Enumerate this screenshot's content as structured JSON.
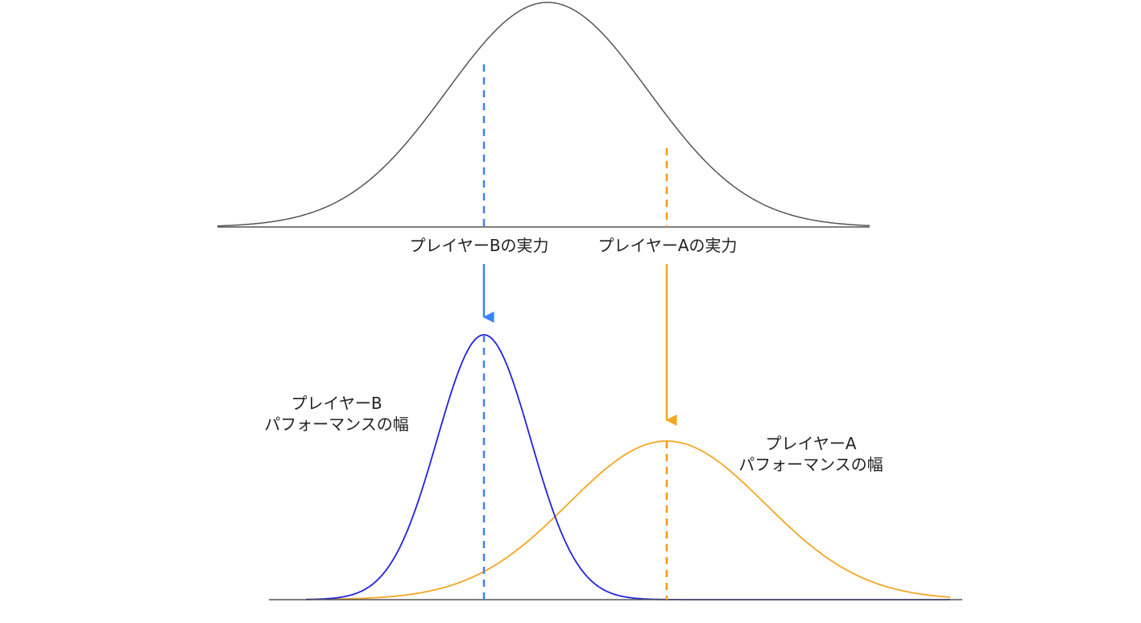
{
  "labels": {
    "b_skill": "プレイヤーBの実力",
    "a_skill": "プレイヤーAの実力",
    "b_perf_line1": "プレイヤーB",
    "b_perf_line2": "パフォーマンスの幅",
    "a_perf_line1": "プレイヤーA",
    "a_perf_line2": "パフォーマンスの幅"
  },
  "colors": {
    "population_curve": "#555555",
    "axis": "#555555",
    "player_b_marker": "#3b82f6",
    "player_b_curve": "#2222dd",
    "player_a": "#f5a623",
    "player_a_dashed": "#f59a0e"
  }
}
